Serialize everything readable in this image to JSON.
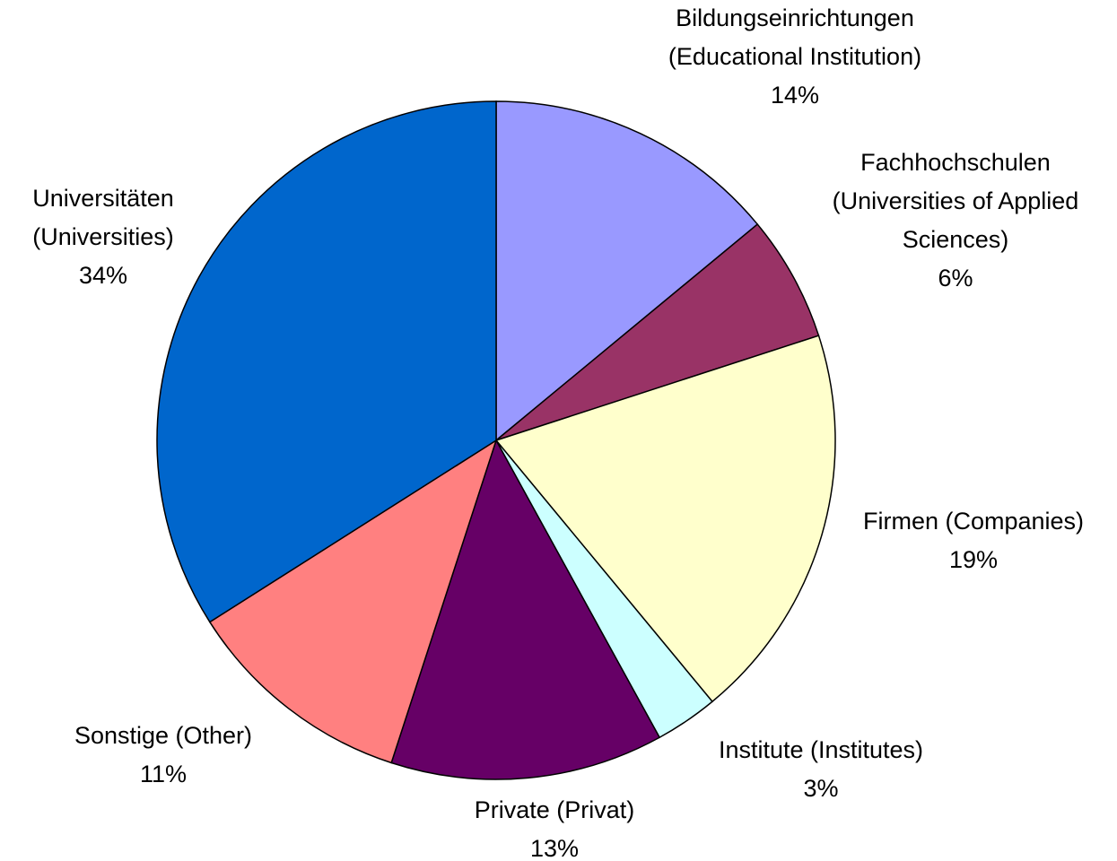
{
  "chart_data": {
    "type": "pie",
    "categories": [
      "Bildungseinrichtungen\n(Educational Institution)",
      "Fachhochschulen\n(Universities of Applied\nSciences)",
      "Firmen (Companies)",
      "Institute (Institutes)",
      "Private (Privat)",
      "Sonstige (Other)",
      "Universitäten\n(Universities)"
    ],
    "values": [
      14,
      6,
      19,
      3,
      13,
      11,
      34
    ],
    "value_labels": [
      "14%",
      "6%",
      "19%",
      "3%",
      "13%",
      "11%",
      "34%"
    ],
    "colors": [
      "#9999ff",
      "#993366",
      "#ffffcc",
      "#ccffff",
      "#660066",
      "#ff8080",
      "#0066cc"
    ]
  }
}
